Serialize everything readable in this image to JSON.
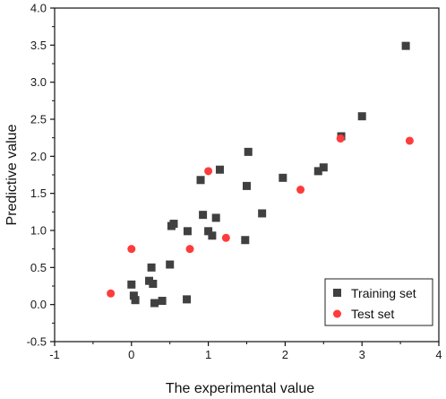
{
  "chart_data": {
    "type": "scatter",
    "title": "",
    "xlabel": "The experimental value",
    "ylabel": "Predictive value",
    "xlim": [
      -1,
      4
    ],
    "ylim": [
      -0.5,
      4.0
    ],
    "xticks": [
      -1,
      0,
      1,
      2,
      3,
      4
    ],
    "yticks": [
      -0.5,
      0.0,
      0.5,
      1.0,
      1.5,
      2.0,
      2.5,
      3.0,
      3.5,
      4.0
    ],
    "xtick_labels": [
      "-1",
      "0",
      "1",
      "2",
      "3",
      "4"
    ],
    "ytick_labels": [
      "-0.5",
      "0.0",
      "0.5",
      "1.0",
      "1.5",
      "2.0",
      "2.5",
      "3.0",
      "3.5",
      "4.0"
    ],
    "grid": false,
    "legend_position": "bottom-right",
    "series": [
      {
        "name": "Training set",
        "marker": "square",
        "color": "#404040",
        "points": [
          [
            0.0,
            0.27
          ],
          [
            0.03,
            0.12
          ],
          [
            0.05,
            0.06
          ],
          [
            0.23,
            0.32
          ],
          [
            0.26,
            0.5
          ],
          [
            0.28,
            0.28
          ],
          [
            0.3,
            0.02
          ],
          [
            0.4,
            0.05
          ],
          [
            0.5,
            0.54
          ],
          [
            0.52,
            1.06
          ],
          [
            0.55,
            1.09
          ],
          [
            0.72,
            0.07
          ],
          [
            0.73,
            0.99
          ],
          [
            0.9,
            1.68
          ],
          [
            0.93,
            1.21
          ],
          [
            1.0,
            0.99
          ],
          [
            1.05,
            0.93
          ],
          [
            1.1,
            1.17
          ],
          [
            1.15,
            1.82
          ],
          [
            1.48,
            0.87
          ],
          [
            1.5,
            1.6
          ],
          [
            1.52,
            2.06
          ],
          [
            1.7,
            1.23
          ],
          [
            1.97,
            1.71
          ],
          [
            2.43,
            1.8
          ],
          [
            2.5,
            1.85
          ],
          [
            2.73,
            2.27
          ],
          [
            3.0,
            2.54
          ],
          [
            3.57,
            3.49
          ]
        ]
      },
      {
        "name": "Test set",
        "marker": "circle",
        "color": "#ff3b3b",
        "points": [
          [
            -0.27,
            0.15
          ],
          [
            0.0,
            0.75
          ],
          [
            0.76,
            0.75
          ],
          [
            1.0,
            1.8
          ],
          [
            1.23,
            0.9
          ],
          [
            2.2,
            1.55
          ],
          [
            2.72,
            2.24
          ],
          [
            3.62,
            2.21
          ]
        ]
      }
    ]
  }
}
